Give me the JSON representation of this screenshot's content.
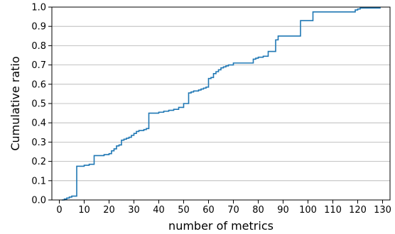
{
  "chart_data": {
    "type": "line",
    "step": true,
    "xlabel": "number of metrics",
    "ylabel": "Cumulative ratio",
    "xlim": [
      -3,
      133
    ],
    "ylim": [
      0,
      1
    ],
    "xticks": [
      0,
      10,
      20,
      30,
      40,
      50,
      60,
      70,
      80,
      90,
      100,
      110,
      120,
      130
    ],
    "yticks": [
      0.0,
      0.1,
      0.2,
      0.3,
      0.4,
      0.5,
      0.6,
      0.7,
      0.8,
      0.9,
      1.0
    ],
    "grid": "horizontal",
    "line_color": "#1f77b4",
    "series": [
      {
        "x": [
          1,
          2,
          3,
          4,
          5,
          6,
          7,
          10,
          12,
          14,
          16,
          18,
          20,
          21,
          22,
          23,
          24,
          25,
          26,
          27,
          28,
          29,
          30,
          31,
          32,
          33,
          34,
          35,
          36,
          40,
          42,
          44,
          46,
          48,
          50,
          52,
          53,
          54,
          56,
          57,
          58,
          59,
          60,
          61,
          62,
          63,
          64,
          65,
          66,
          67,
          68,
          69,
          70,
          77,
          78,
          79,
          80,
          82,
          84,
          86,
          87,
          88,
          96,
          97,
          100,
          102,
          118,
          119,
          120,
          121,
          129
        ],
        "y": [
          0.0,
          0.005,
          0.01,
          0.015,
          0.02,
          0.02,
          0.175,
          0.18,
          0.185,
          0.23,
          0.23,
          0.235,
          0.24,
          0.255,
          0.265,
          0.28,
          0.285,
          0.31,
          0.315,
          0.32,
          0.325,
          0.335,
          0.345,
          0.355,
          0.36,
          0.36,
          0.365,
          0.37,
          0.45,
          0.455,
          0.46,
          0.465,
          0.47,
          0.48,
          0.5,
          0.555,
          0.56,
          0.565,
          0.57,
          0.575,
          0.58,
          0.585,
          0.63,
          0.635,
          0.655,
          0.665,
          0.675,
          0.685,
          0.69,
          0.695,
          0.7,
          0.7,
          0.71,
          0.71,
          0.73,
          0.735,
          0.74,
          0.745,
          0.77,
          0.77,
          0.83,
          0.85,
          0.85,
          0.93,
          0.93,
          0.975,
          0.975,
          0.985,
          0.99,
          0.995,
          1.0
        ]
      }
    ]
  }
}
